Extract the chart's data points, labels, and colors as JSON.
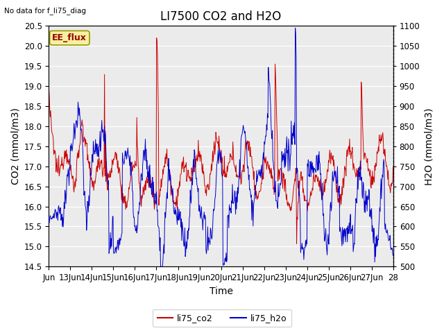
{
  "title": "LI7500 CO2 and H2O",
  "top_left_text": "No data for f_li75_diag",
  "box_label": "EE_flux",
  "xlabel": "Time",
  "ylabel_left": "CO2 (mmol/m3)",
  "ylabel_right": "H2O (mmol/m3)",
  "ylim_left": [
    14.5,
    20.5
  ],
  "ylim_right": [
    500,
    1100
  ],
  "yticks_left": [
    14.5,
    15.0,
    15.5,
    16.0,
    16.5,
    17.0,
    17.5,
    18.0,
    18.5,
    19.0,
    19.5,
    20.0,
    20.5
  ],
  "yticks_right": [
    500,
    550,
    600,
    650,
    700,
    750,
    800,
    850,
    900,
    950,
    1000,
    1050,
    1100
  ],
  "x_tick_labels": [
    "Jun",
    "13Jun",
    "14Jun",
    "15Jun",
    "16Jun",
    "17Jun",
    "18Jun",
    "19Jun",
    "20Jun",
    "21Jun",
    "22Jun",
    "23Jun",
    "24Jun",
    "25Jun",
    "26Jun",
    "27Jun",
    "28"
  ],
  "color_co2": "#cc0000",
  "color_h2o": "#0000cc",
  "plot_bg_color": "#ebebeb",
  "legend_entries": [
    "li75_co2",
    "li75_h2o"
  ],
  "title_fontsize": 12,
  "axis_label_fontsize": 10,
  "tick_fontsize": 8.5,
  "figsize": [
    6.4,
    4.8
  ],
  "dpi": 100
}
